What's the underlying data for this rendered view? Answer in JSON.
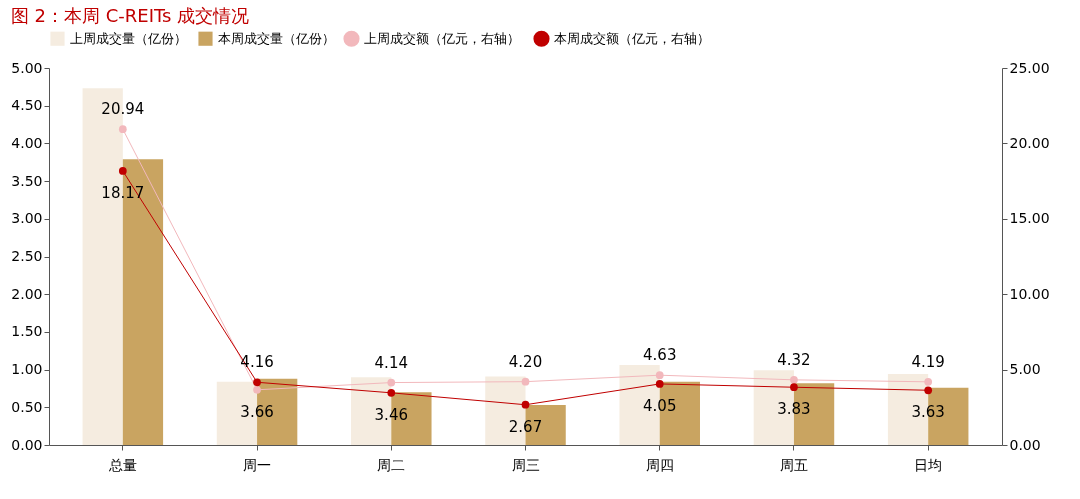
{
  "chart_data": {
    "type": "bar",
    "title": "图 2：本周 C-REITs 成交情况",
    "categories": [
      "总量",
      "周一",
      "周二",
      "周三",
      "周四",
      "周五",
      "日均"
    ],
    "series": [
      {
        "name": "上周成交量（亿份）",
        "color": "#f5ece0",
        "values": [
          4.73,
          0.84,
          0.9,
          0.91,
          1.06,
          0.99,
          0.94
        ]
      },
      {
        "name": "本周成交量（亿份）",
        "color": "#c9a461",
        "values": [
          3.79,
          0.88,
          0.7,
          0.53,
          0.84,
          0.82,
          0.76
        ]
      },
      {
        "name": "上周成交额（亿元，右轴）",
        "type": "line",
        "axis": "y2",
        "color": "#f2b8bc",
        "values": [
          20.94,
          3.66,
          4.14,
          4.2,
          4.63,
          4.32,
          4.19
        ],
        "value_labels": [
          "20.94",
          "3.66",
          "4.14",
          "4.20",
          "4.63",
          "4.32",
          "4.19"
        ]
      },
      {
        "name": "本周成交额（亿元，右轴）",
        "type": "line",
        "axis": "y2",
        "color": "#c00000",
        "values": [
          18.17,
          4.16,
          3.46,
          2.67,
          4.05,
          3.83,
          3.63
        ],
        "value_labels": [
          "18.17",
          "4.16",
          "3.46",
          "2.67",
          "4.05",
          "3.83",
          "3.63"
        ]
      }
    ],
    "ylim": [
      0,
      5
    ],
    "yticks": [
      {
        "value": 0,
        "label": "0.00"
      },
      {
        "value": 0.5,
        "label": "0.50"
      },
      {
        "value": 1,
        "label": "1.00"
      },
      {
        "value": 1.5,
        "label": "1.50"
      },
      {
        "value": 2,
        "label": "2.00"
      },
      {
        "value": 2.5,
        "label": "2.50"
      },
      {
        "value": 3,
        "label": "3.00"
      },
      {
        "value": 3.5,
        "label": "3.50"
      },
      {
        "value": 4,
        "label": "4.00"
      },
      {
        "value": 4.5,
        "label": "4.50"
      },
      {
        "value": 5,
        "label": "5.00"
      }
    ],
    "y2lim": [
      0,
      25
    ],
    "y2ticks": [
      {
        "value": 0,
        "label": "0.00"
      },
      {
        "value": 5,
        "label": "5.00"
      },
      {
        "value": 10,
        "label": "10.00"
      },
      {
        "value": 15,
        "label": "15.00"
      },
      {
        "value": 20,
        "label": "20.00"
      },
      {
        "value": 25,
        "label": "25.00"
      }
    ],
    "grid": false,
    "legend": "top",
    "marker": "circle",
    "line_style": "solid"
  }
}
